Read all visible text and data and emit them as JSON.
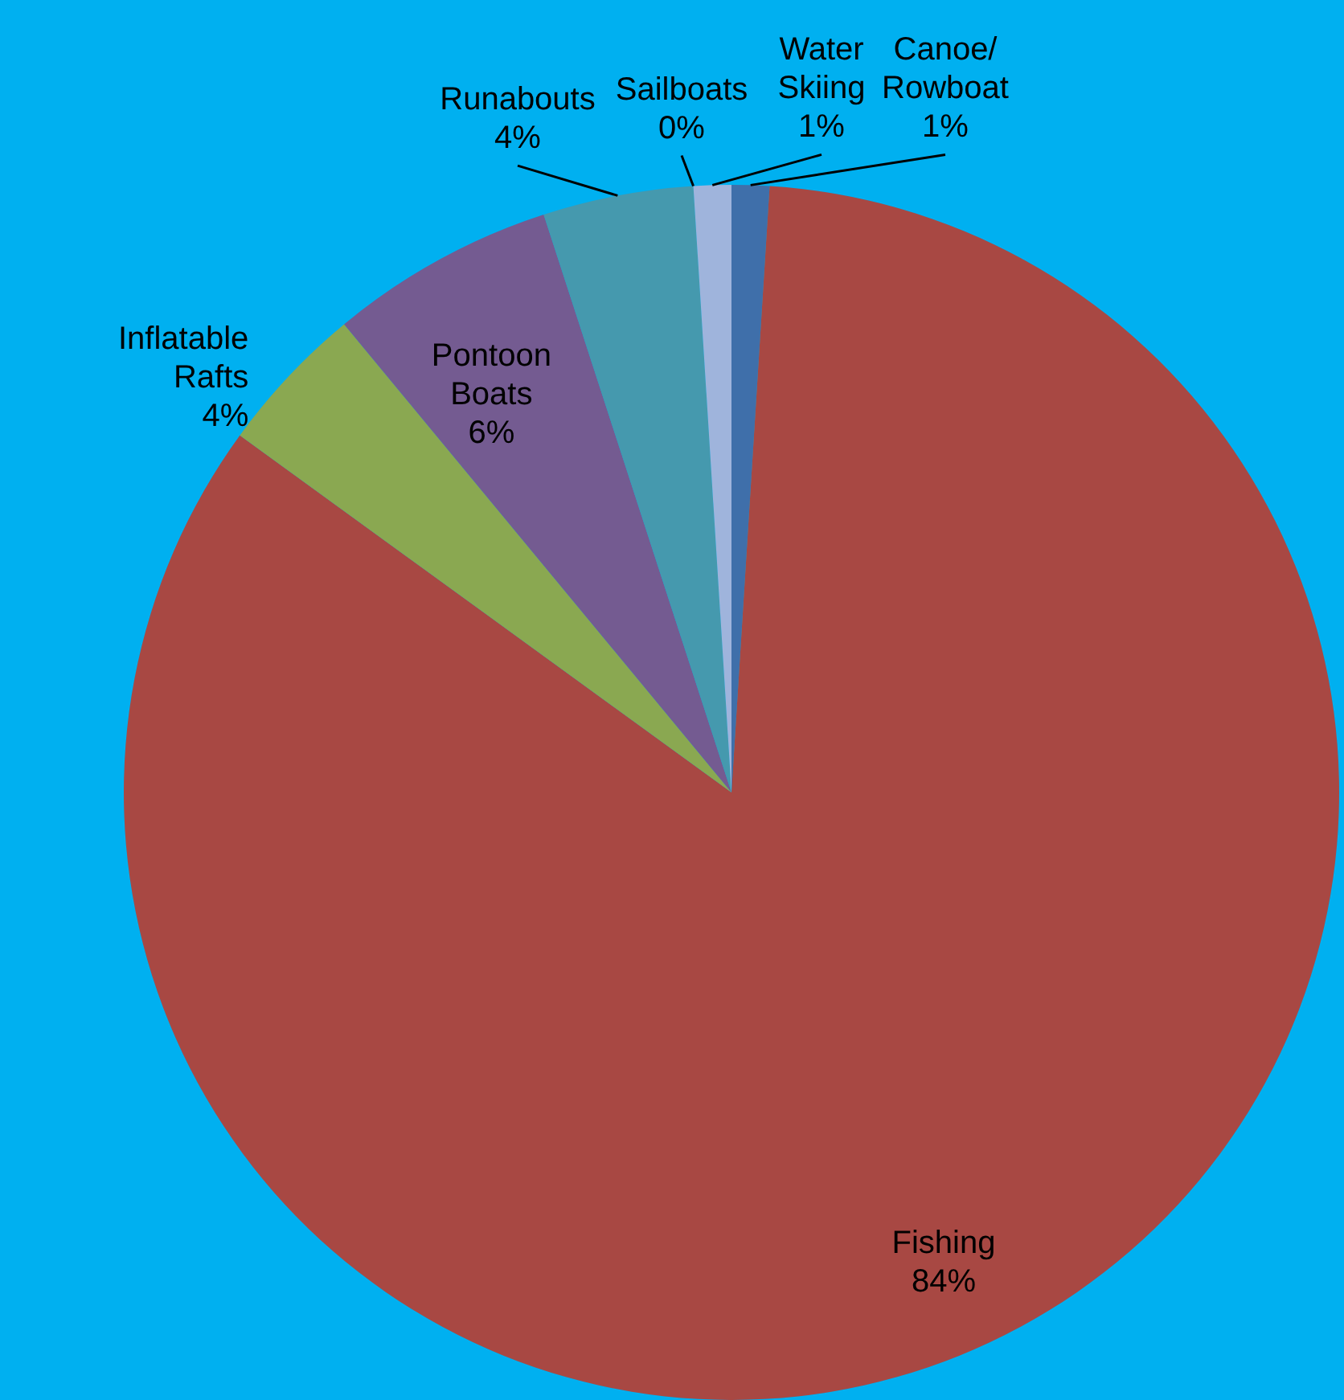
{
  "chart_data": {
    "type": "pie",
    "categories": [
      "Canoe/Rowboat",
      "Fishing",
      "Inflatable Rafts",
      "Pontoon Boats",
      "Runabouts",
      "Sailboats",
      "Water Skiing"
    ],
    "values": [
      1,
      84,
      4,
      6,
      4,
      0,
      1
    ],
    "value_labels": [
      "1%",
      "84%",
      "4%",
      "6%",
      "4%",
      "0%",
      "1%"
    ],
    "colors": [
      "#3f6faa",
      "#a84843",
      "#8aa851",
      "#745b91",
      "#4599ae",
      "#e8873a",
      "#9fb4dc"
    ]
  }
}
